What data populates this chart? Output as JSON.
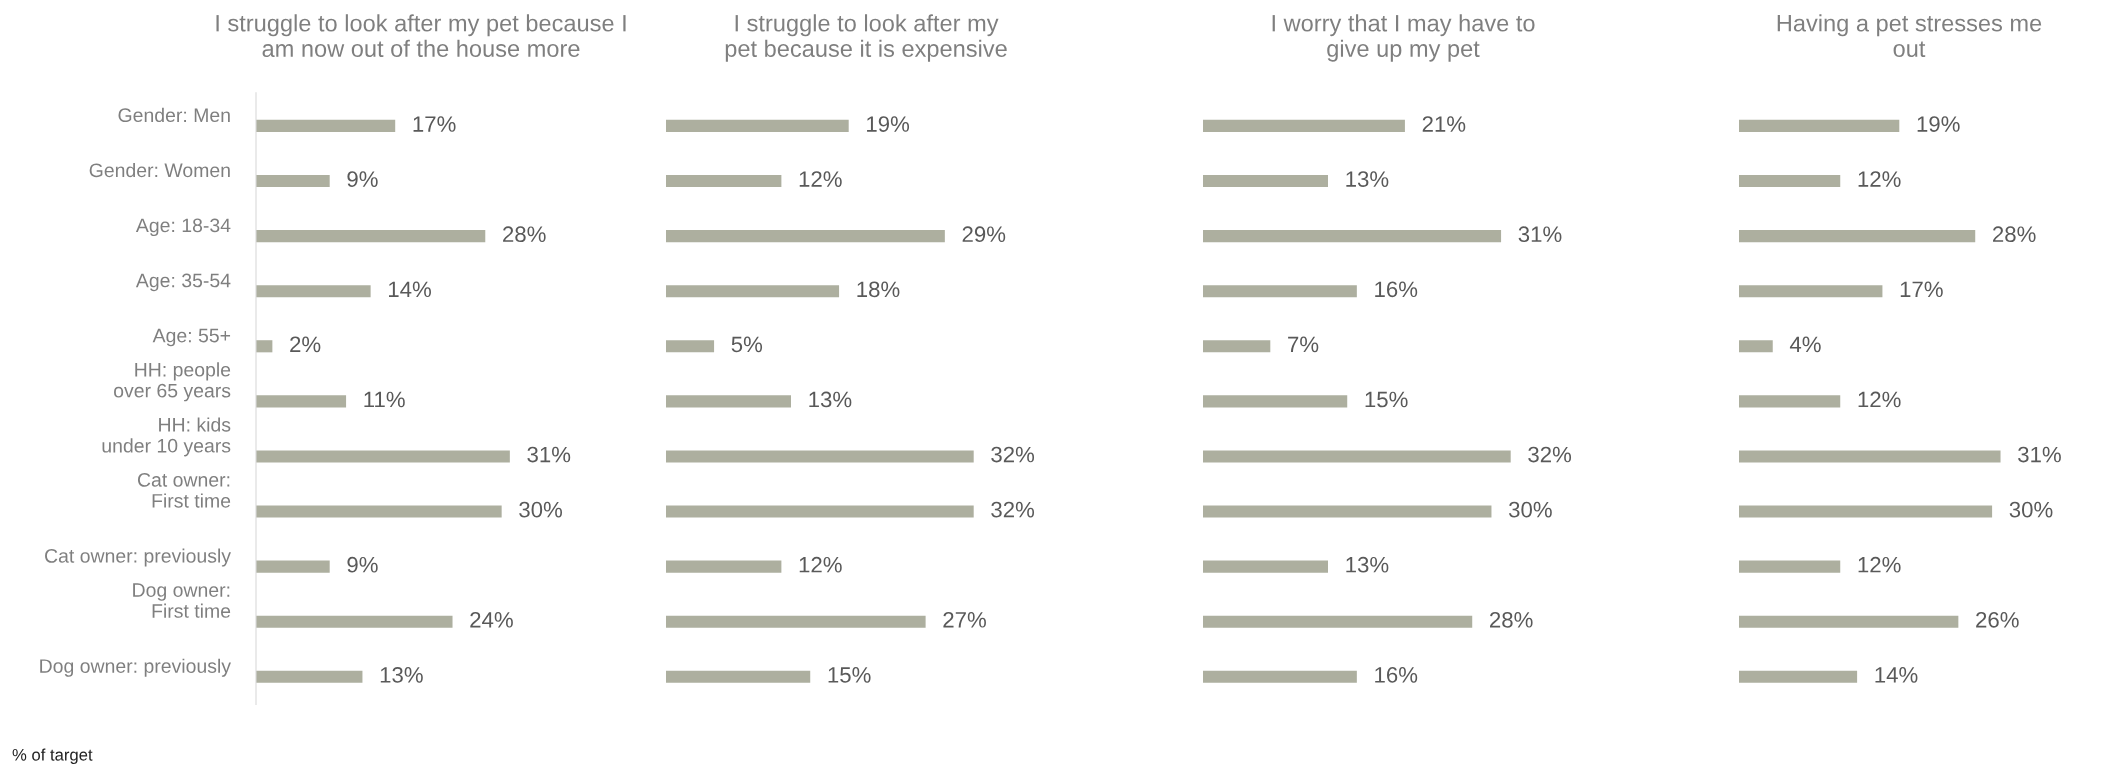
{
  "chart_data": [
    {
      "type": "bar",
      "orientation": "horizontal",
      "title": "I struggle to look after my pet because I\nam now out of the house more",
      "categories": [
        "Gender: Men",
        "Gender: Women",
        "Age: 18-34",
        "Age: 35-54",
        "Age: 55+",
        "HH: people\nover 65 years",
        "HH: kids\nunder 10 years",
        "Cat owner:\nFirst time",
        "Cat owner: previously",
        "Dog owner:\nFirst time",
        "Dog owner: previously"
      ],
      "values": [
        17,
        9,
        28,
        14,
        2,
        11,
        31,
        30,
        9,
        24,
        13
      ],
      "value_labels": [
        "17%",
        "9%",
        "28%",
        "14%",
        "2%",
        "11%",
        "31%",
        "30%",
        "9%",
        "24%",
        "13%"
      ],
      "color": "#adaf9f",
      "annotations": [
        "% of target"
      ]
    },
    {
      "type": "bar",
      "orientation": "horizontal",
      "title": "I struggle to look after my\npet because it is expensive",
      "categories": [
        null,
        null,
        null,
        null,
        null,
        null,
        null,
        null,
        null,
        null,
        null
      ],
      "values": [
        19,
        12,
        29,
        18,
        5,
        13,
        32,
        32,
        12,
        27,
        15
      ],
      "value_labels": [
        "19%",
        "12%",
        "29%",
        "18%",
        "5%",
        "13%",
        "32%",
        "32%",
        "12%",
        "27%",
        "15%"
      ],
      "color": "#adaf9f",
      "tick_labels": false
    },
    {
      "type": "bar",
      "orientation": "horizontal",
      "title": "I worry that I may have to\ngive up my pet",
      "categories": [
        null,
        null,
        null,
        null,
        null,
        null,
        null,
        null,
        null,
        null,
        null
      ],
      "values": [
        21,
        13,
        31,
        16,
        7,
        15,
        32,
        30,
        13,
        28,
        16
      ],
      "value_labels": [
        "21%",
        "13%",
        "31%",
        "16%",
        "7%",
        "15%",
        "32%",
        "30%",
        "13%",
        "28%",
        "16%"
      ],
      "color": "#adaf9f",
      "tick_labels": false
    },
    {
      "type": "bar",
      "orientation": "horizontal",
      "title": "Having a pet stresses me\nout",
      "categories": [
        null,
        null,
        null,
        null,
        null,
        null,
        null,
        null,
        null,
        null,
        null
      ],
      "values": [
        19,
        12,
        28,
        17,
        4,
        12,
        31,
        30,
        12,
        26,
        14
      ],
      "value_labels": [
        "19%",
        "12%",
        "28%",
        "17%",
        "4%",
        "12%",
        "31%",
        "30%",
        "12%",
        "26%",
        "14%"
      ],
      "color": "#adaf9f",
      "tick_labels": false
    }
  ]
}
